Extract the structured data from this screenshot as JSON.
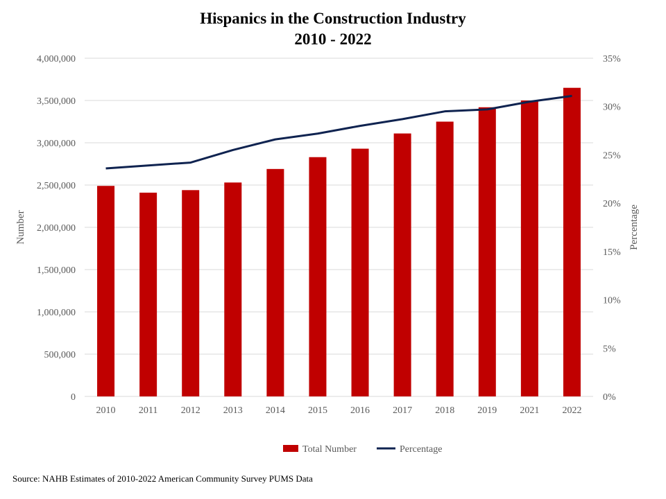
{
  "chart_data": {
    "type": "bar",
    "title": "Hispanics in the Construction Industry",
    "subtitle": "2010 - 2022",
    "categories": [
      "2010",
      "2011",
      "2012",
      "2013",
      "2014",
      "2015",
      "2016",
      "2017",
      "2018",
      "2019",
      "2021",
      "2022"
    ],
    "series": [
      {
        "name": "Total Number",
        "type": "bar",
        "axis": "left",
        "color": "#C00000",
        "values": [
          2490000,
          2410000,
          2440000,
          2530000,
          2690000,
          2830000,
          2930000,
          3110000,
          3250000,
          3420000,
          3500000,
          3650000
        ]
      },
      {
        "name": "Percentage",
        "type": "line",
        "axis": "right",
        "color": "#0F2350",
        "values": [
          23.6,
          23.9,
          24.2,
          25.5,
          26.6,
          27.2,
          28.0,
          28.7,
          29.5,
          29.7,
          30.5,
          31.1
        ]
      }
    ],
    "ylabel": "Number",
    "y2label": "Percentage",
    "ylim": [
      0,
      4000000
    ],
    "y2lim": [
      0,
      35
    ],
    "yticks": [
      "0",
      "500,000",
      "1,000,000",
      "1,500,000",
      "2,000,000",
      "2,500,000",
      "3,000,000",
      "3,500,000",
      "4,000,000"
    ],
    "y2ticks": [
      "0%",
      "5%",
      "10%",
      "15%",
      "20%",
      "25%",
      "30%",
      "35%"
    ],
    "grid": true,
    "legend_position": "bottom"
  },
  "source": "Source: NAHB Estimates of 2010-2022  American Community  Survey PUMS Data"
}
